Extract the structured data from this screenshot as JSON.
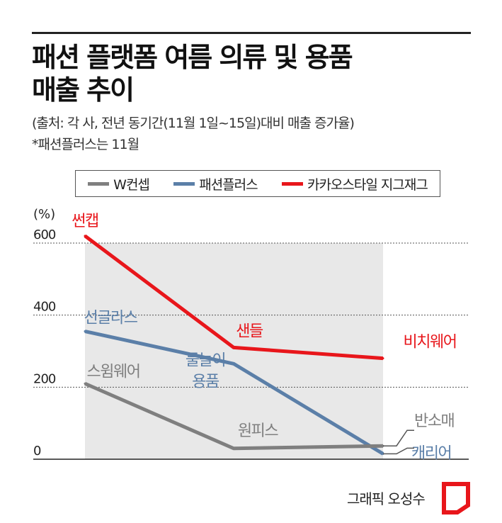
{
  "header": {
    "title": "패션 플랫폼 여름 의류 및 용품\n매출 추이",
    "subtitle": "(출처: 각 사, 전년 동기간(11월 1일~15일)대비 매출 증가율)",
    "note": "*패션플러스는 11월"
  },
  "legend": [
    {
      "label": "W컨셉",
      "color": "#7f7f7f"
    },
    {
      "label": "패션플러스",
      "color": "#5b7fa8"
    },
    {
      "label": "카카오스타일 지그재그",
      "color": "#e8161b"
    }
  ],
  "chart_data": {
    "type": "line",
    "ylabel": "(%)",
    "ylim": [
      0,
      600
    ],
    "yticks": [
      "0",
      "200",
      "400",
      "600"
    ],
    "grid": true,
    "series": [
      {
        "name": "카카오스타일 지그재그",
        "color": "#e8161b",
        "values": [
          620,
          310,
          280
        ],
        "labels": [
          "썬캡",
          "샌들",
          "비치웨어"
        ]
      },
      {
        "name": "패션플러스",
        "color": "#5b7fa8",
        "values": [
          355,
          265,
          15
        ],
        "labels": [
          "선글라스",
          "물놀이\n용품",
          "캐리어"
        ]
      },
      {
        "name": "W컨셉",
        "color": "#7f7f7f",
        "values": [
          210,
          30,
          37
        ],
        "labels": [
          "스윔웨어",
          "원피스",
          "반소매"
        ]
      }
    ]
  },
  "footer": {
    "credit": "그래픽 오성수"
  }
}
